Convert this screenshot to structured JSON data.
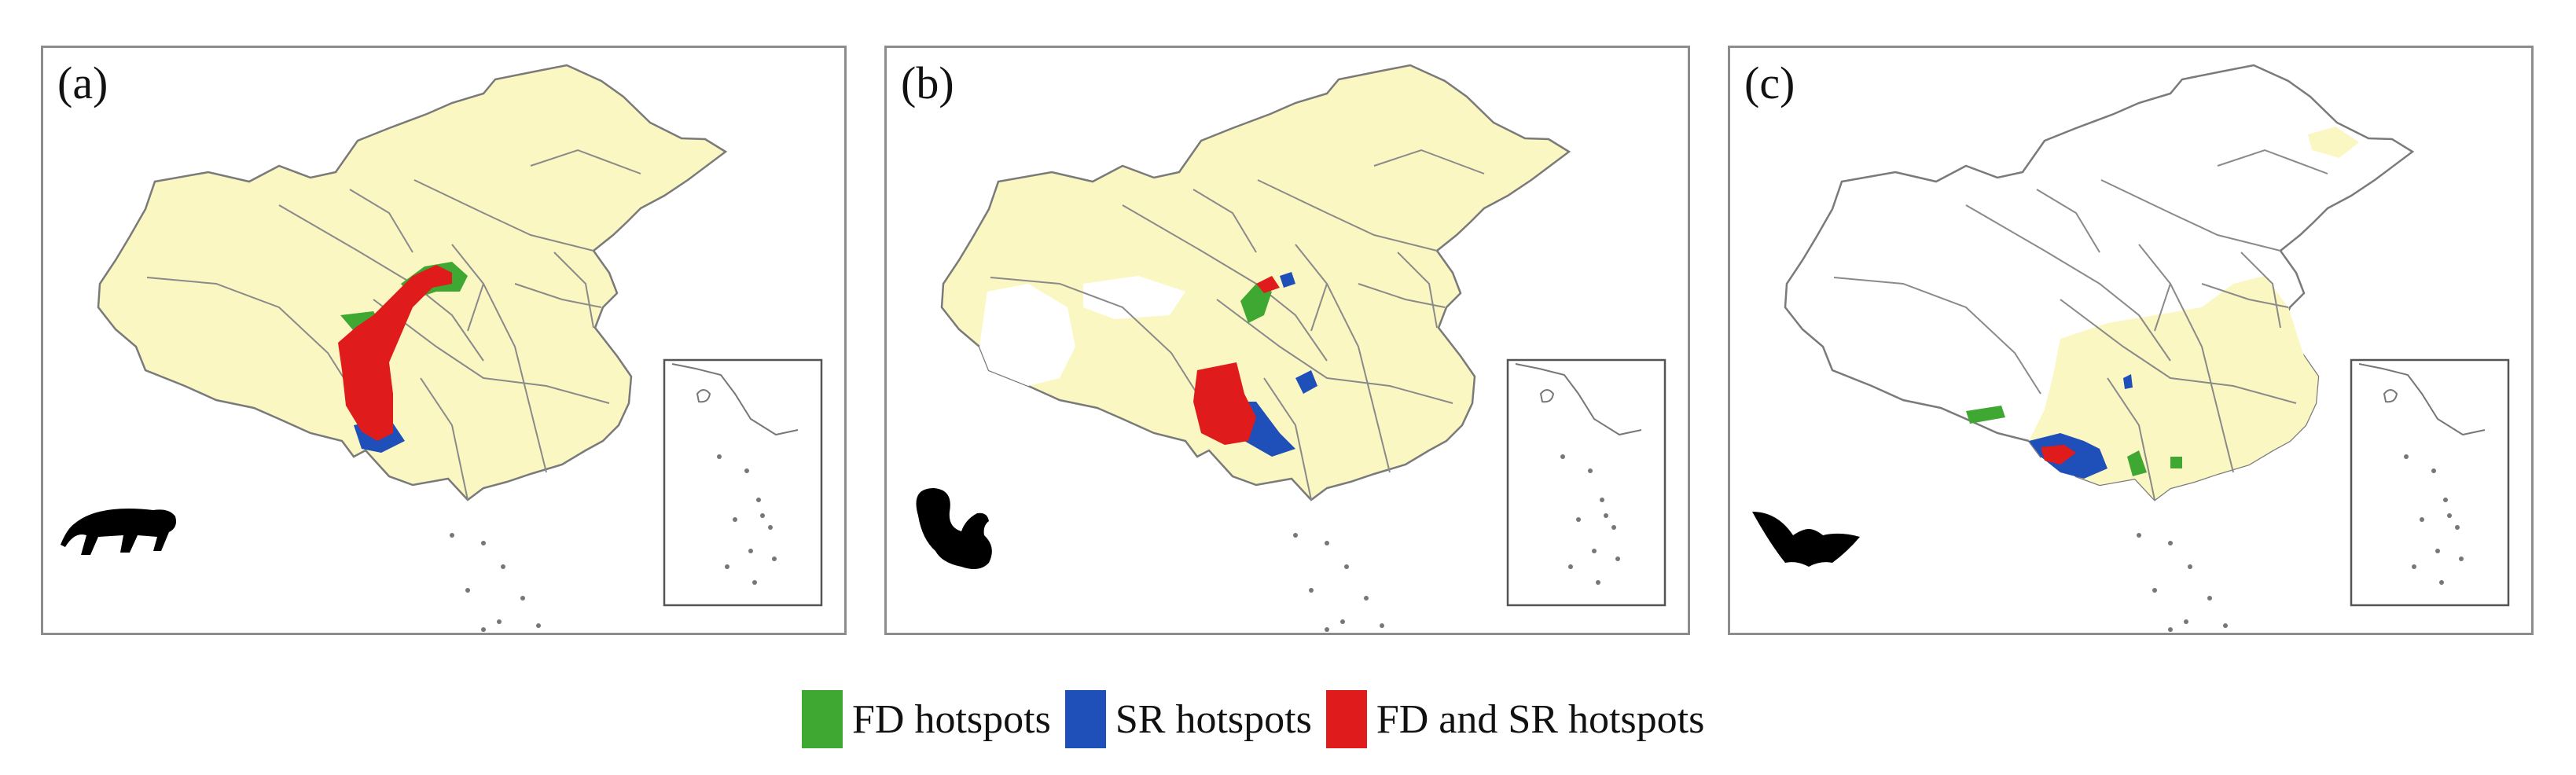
{
  "panels": [
    {
      "id": "a",
      "label": "(a)",
      "taxon_icon": "tiger-silhouette-icon"
    },
    {
      "id": "b",
      "label": "(b)",
      "taxon_icon": "squirrel-silhouette-icon"
    },
    {
      "id": "c",
      "label": "(c)",
      "taxon_icon": "bat-silhouette-icon"
    }
  ],
  "legend": {
    "fd": {
      "label": "FD hotspots",
      "color": "#3ea832"
    },
    "sr": {
      "label": "SR hotspots",
      "color": "#1f4fb8"
    },
    "both": {
      "label": "FD and SR hotspots",
      "color": "#e01b1b"
    }
  },
  "colors": {
    "range_fill": "#fbf7c2",
    "boundary": "#7a7a7a",
    "inset_border": "#555555"
  }
}
